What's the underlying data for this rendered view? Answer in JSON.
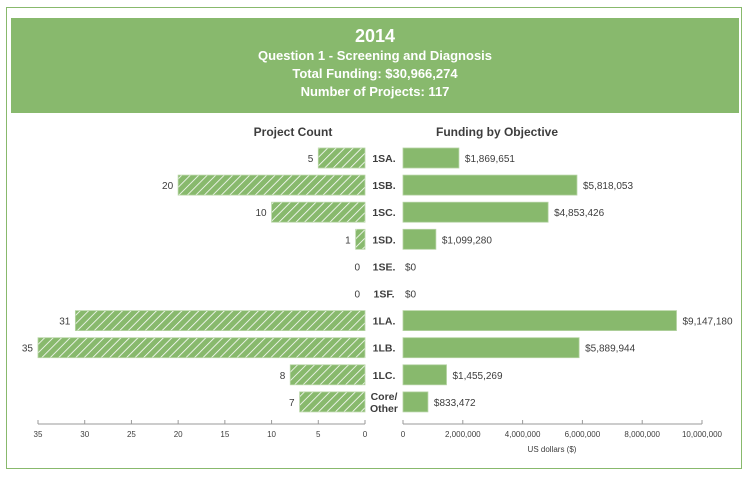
{
  "header": {
    "year": "2014",
    "subtitle": "Question 1 - Screening and Diagnosis",
    "total_funding": "Total Funding: $30,966,274",
    "num_projects": "Number of Projects: 117"
  },
  "colors": {
    "bar": "#88b96d",
    "bar_border": "#74a85a",
    "frame": "#88b96c",
    "text": "#3d3d3d",
    "axis": "#9a9a9a"
  },
  "chart_data": [
    {
      "type": "bar",
      "orientation": "horizontal",
      "title": "Project Count",
      "direction": "right-to-left",
      "fill": "hatched",
      "categories": [
        "1SA.",
        "1SB.",
        "1SC.",
        "1SD.",
        "1SE.",
        "1SF.",
        "1LA.",
        "1LB.",
        "1LC.",
        "Core/ Other"
      ],
      "values": [
        5,
        20,
        10,
        1,
        0,
        0,
        31,
        35,
        8,
        7
      ],
      "value_labels": [
        "5",
        "20",
        "10",
        "1",
        "0",
        "0",
        "31",
        "35",
        "8",
        "7"
      ],
      "xlim": [
        0,
        35
      ],
      "xticks": [
        35,
        30,
        25,
        20,
        15,
        10,
        5,
        0
      ],
      "xtick_labels": [
        "35",
        "30",
        "25",
        "20",
        "15",
        "10",
        "5",
        "0"
      ],
      "xlabel": "",
      "grid": false
    },
    {
      "type": "bar",
      "orientation": "horizontal",
      "title": "Funding by Objective",
      "direction": "left-to-right",
      "fill": "solid",
      "categories": [
        "1SA.",
        "1SB.",
        "1SC.",
        "1SD.",
        "1SE.",
        "1SF.",
        "1LA.",
        "1LB.",
        "1LC.",
        "Core/ Other"
      ],
      "values": [
        1869651,
        5818053,
        4853426,
        1099280,
        0,
        0,
        9147180,
        5889944,
        1455269,
        833472
      ],
      "value_labels": [
        "$1,869,651",
        "$5,818,053",
        "$4,853,426",
        "$1,099,280",
        "$0",
        "$0",
        "$9,147,180",
        "$5,889,944",
        "$1,455,269",
        "$833,472"
      ],
      "xlim": [
        0,
        10000000
      ],
      "xticks": [
        0,
        2000000,
        4000000,
        6000000,
        8000000,
        10000000
      ],
      "xtick_labels": [
        "0",
        "2,000,000",
        "4,000,000",
        "6,000,000",
        "8,000,000",
        "10,000,000"
      ],
      "xlabel": "US dollars ($)",
      "grid": false
    }
  ],
  "category_labels": [
    [
      "1SA."
    ],
    [
      "1SB."
    ],
    [
      "1SC."
    ],
    [
      "1SD."
    ],
    [
      "1SE."
    ],
    [
      "1SF."
    ],
    [
      "1LA."
    ],
    [
      "1LB."
    ],
    [
      "1LC."
    ],
    [
      "Core/",
      "Other"
    ]
  ]
}
